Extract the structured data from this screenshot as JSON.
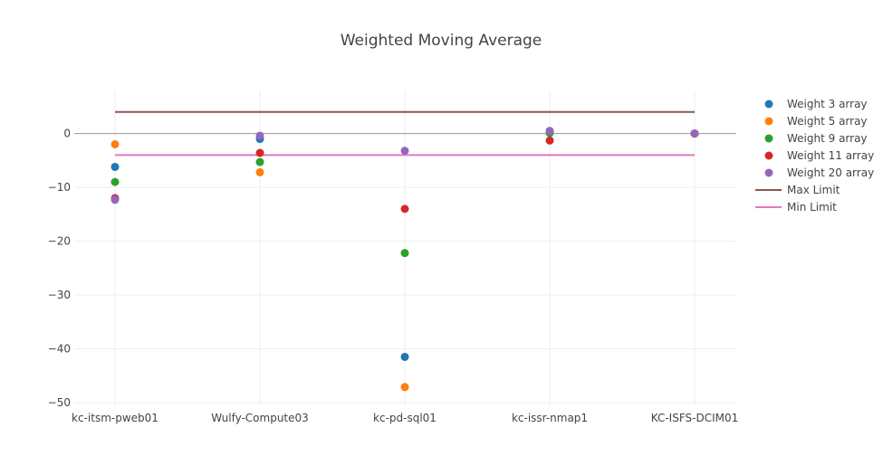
{
  "chart_data": {
    "type": "scatter",
    "title": "Weighted Moving Average",
    "xlabel": "",
    "ylabel": "",
    "categories": [
      "kc-itsm-pweb01",
      "Wulfy-Compute03",
      "kc-pd-sql01",
      "kc-issr-nmap1",
      "KC-ISFS-DCIM01"
    ],
    "ylim": [
      -50.5,
      8
    ],
    "yticks": [
      0,
      -10,
      -20,
      -30,
      -40,
      -50
    ],
    "ytick_labels": [
      "0",
      "−10",
      "−20",
      "−30",
      "−40",
      "−50"
    ],
    "grid": true,
    "zero_line": true,
    "legend_position": "right",
    "series": [
      {
        "name": "Weight 3 array",
        "mode": "markers",
        "color": "#1f77b4",
        "values": [
          -6.2,
          -1.0,
          -41.5,
          0.2,
          0.0
        ]
      },
      {
        "name": "Weight 5 array",
        "mode": "markers",
        "color": "#ff7f0e",
        "values": [
          -2.0,
          -7.2,
          -47.1,
          0.3,
          0.0
        ]
      },
      {
        "name": "Weight 9 array",
        "mode": "markers",
        "color": "#2ca02c",
        "values": [
          -9.0,
          -5.3,
          -22.2,
          0.1,
          0.0
        ]
      },
      {
        "name": "Weight 11 array",
        "mode": "markers",
        "color": "#d62728",
        "values": [
          -12.0,
          -3.6,
          -14.0,
          -1.3,
          0.0
        ]
      },
      {
        "name": "Weight 20 array",
        "mode": "markers",
        "color": "#9467bd",
        "values": [
          -12.3,
          -0.4,
          -3.2,
          0.5,
          0.0
        ]
      },
      {
        "name": "Max Limit",
        "mode": "line",
        "color": "#8c564b",
        "values": [
          4,
          4,
          4,
          4,
          4
        ]
      },
      {
        "name": "Min Limit",
        "mode": "line",
        "color": "#e377c2",
        "values": [
          -4,
          -4,
          -4,
          -4,
          -4
        ]
      }
    ]
  }
}
